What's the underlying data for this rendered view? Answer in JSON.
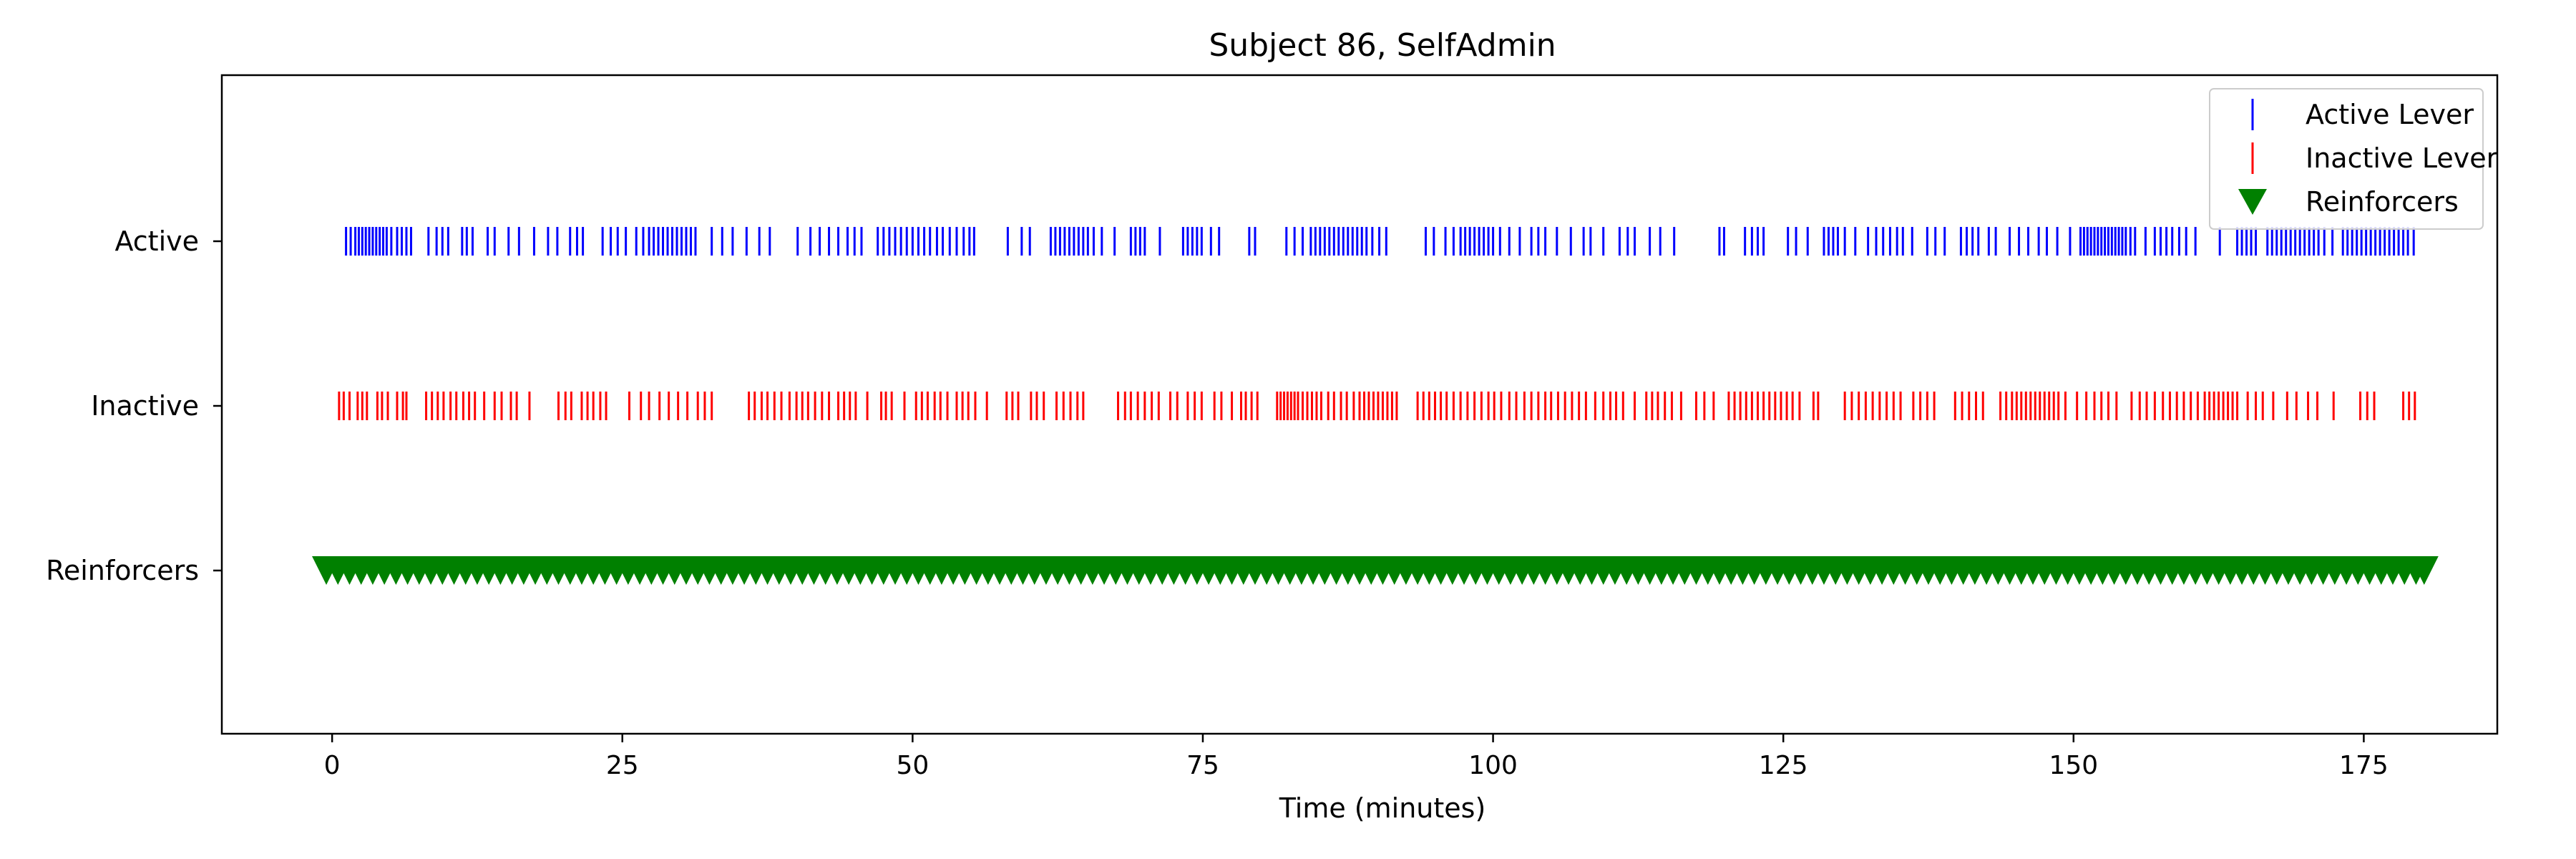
{
  "chart_data": {
    "type": "scatter",
    "title": "Subject 86, SelfAdmin",
    "xlabel": "Time (minutes)",
    "ylabel": "",
    "xlim": [
      -9.5,
      186.5
    ],
    "xticks": [
      0,
      25,
      50,
      75,
      100,
      125,
      150,
      175
    ],
    "xtick_labels": [
      "0",
      "25",
      "50",
      "75",
      "100",
      "125",
      "150",
      "175"
    ],
    "y_categories": [
      "Active",
      "Inactive",
      "Reinforcers"
    ],
    "grid": false,
    "legend_position": "top-right",
    "series": [
      {
        "name": "Active Lever",
        "row": "Active",
        "marker": "vertical-line",
        "color": "#0000ff",
        "x": [
          1.2,
          1.6,
          2.0,
          2.3,
          2.6,
          2.9,
          3.2,
          3.5,
          3.8,
          4.1,
          4.4,
          4.7,
          5.1,
          5.6,
          6.0,
          6.4,
          6.8,
          8.3,
          9.0,
          9.5,
          10.0,
          11.2,
          11.6,
          12.1,
          13.4,
          14.0,
          15.2,
          16.1,
          17.4,
          18.6,
          19.4,
          20.5,
          21.1,
          21.6,
          23.3,
          24.0,
          24.6,
          25.3,
          26.2,
          26.8,
          27.3,
          27.7,
          28.1,
          28.5,
          28.9,
          29.3,
          29.7,
          30.1,
          30.5,
          30.9,
          31.3,
          32.7,
          33.6,
          34.5,
          35.7,
          36.8,
          37.7,
          40.1,
          41.2,
          42.0,
          42.8,
          43.6,
          44.4,
          45.0,
          45.6,
          47.0,
          47.5,
          48.0,
          48.5,
          49.0,
          49.5,
          50.0,
          50.5,
          51.0,
          51.5,
          52.1,
          52.6,
          53.2,
          53.8,
          54.4,
          54.9,
          55.3,
          58.2,
          59.4,
          60.1,
          61.9,
          62.3,
          62.7,
          63.1,
          63.5,
          63.9,
          64.3,
          64.7,
          65.1,
          65.6,
          66.3,
          67.4,
          68.8,
          69.2,
          69.6,
          70.0,
          71.3,
          73.3,
          73.7,
          74.1,
          74.5,
          74.9,
          75.7,
          76.4,
          79.0,
          79.5,
          82.2,
          82.9,
          83.6,
          84.3,
          84.7,
          85.1,
          85.5,
          85.9,
          86.3,
          86.7,
          87.1,
          87.5,
          87.9,
          88.3,
          88.7,
          89.1,
          89.6,
          90.2,
          90.8,
          94.2,
          94.9,
          95.9,
          96.6,
          97.2,
          97.6,
          98.0,
          98.4,
          98.8,
          99.2,
          99.6,
          100.0,
          100.6,
          101.4,
          102.3,
          103.3,
          103.9,
          104.5,
          105.5,
          106.7,
          107.8,
          108.4,
          109.5,
          110.9,
          111.6,
          112.2,
          113.5,
          114.4,
          115.6,
          119.5,
          119.9,
          121.7,
          122.3,
          122.8,
          123.3,
          125.4,
          126.1,
          127.1,
          128.5,
          128.9,
          129.3,
          129.7,
          130.3,
          131.2,
          132.3,
          133.0,
          133.6,
          134.2,
          134.8,
          135.3,
          136.1,
          137.4,
          138.1,
          138.9,
          140.3,
          140.8,
          141.3,
          141.8,
          142.7,
          143.3,
          144.5,
          145.3,
          146.1,
          147.0,
          147.7,
          148.6,
          149.7,
          150.6,
          150.9,
          151.2,
          151.5,
          151.8,
          152.1,
          152.4,
          152.7,
          153.0,
          153.3,
          153.6,
          153.9,
          154.2,
          154.5,
          154.9,
          155.3,
          156.2,
          157.0,
          157.5,
          158.0,
          158.5,
          159.1,
          159.7,
          160.5,
          162.6,
          164.1,
          164.5,
          164.9,
          165.3,
          165.7,
          166.7,
          167.1,
          167.5,
          167.9,
          168.3,
          168.7,
          169.1,
          169.5,
          169.9,
          170.3,
          170.7,
          171.1,
          171.6,
          172.3,
          173.2,
          173.6,
          174.0,
          174.4,
          174.8,
          175.2,
          175.6,
          176.0,
          176.4,
          176.8,
          177.2,
          177.6,
          178.0,
          178.4,
          178.8,
          179.3
        ]
      },
      {
        "name": "Inactive Lever",
        "row": "Inactive",
        "marker": "vertical-line",
        "color": "#ff0000",
        "x": [
          0.6,
          1.0,
          1.5,
          2.2,
          2.6,
          3.0,
          3.9,
          4.3,
          4.8,
          5.6,
          6.1,
          6.4,
          8.1,
          8.6,
          9.1,
          9.6,
          10.2,
          10.7,
          11.3,
          11.8,
          12.3,
          13.1,
          14.0,
          14.6,
          15.4,
          15.9,
          17.0,
          19.5,
          20.1,
          20.6,
          21.5,
          22.0,
          22.5,
          23.1,
          23.6,
          25.6,
          26.6,
          27.3,
          28.2,
          29.0,
          29.8,
          30.6,
          31.5,
          32.1,
          32.7,
          35.9,
          36.4,
          37.0,
          37.5,
          38.1,
          38.7,
          39.4,
          40.0,
          40.5,
          41.0,
          41.6,
          42.2,
          42.8,
          43.6,
          44.1,
          44.6,
          45.1,
          46.1,
          47.3,
          47.7,
          48.2,
          49.3,
          50.3,
          50.8,
          51.3,
          51.9,
          52.4,
          53.0,
          53.8,
          54.3,
          54.8,
          55.4,
          56.4,
          58.1,
          58.6,
          59.1,
          60.2,
          60.7,
          61.3,
          62.4,
          63.0,
          63.6,
          64.2,
          64.7,
          67.7,
          68.3,
          68.8,
          69.4,
          70.0,
          70.6,
          71.2,
          72.2,
          72.8,
          73.7,
          74.3,
          74.9,
          76.0,
          76.6,
          77.5,
          78.3,
          78.7,
          79.2,
          79.7,
          81.4,
          81.7,
          82.0,
          82.3,
          82.6,
          82.9,
          83.2,
          83.6,
          84.0,
          84.4,
          84.8,
          85.2,
          85.8,
          86.3,
          86.9,
          87.4,
          88.0,
          88.5,
          88.9,
          89.3,
          89.7,
          90.1,
          90.5,
          90.9,
          91.3,
          91.7,
          93.5,
          94.0,
          94.5,
          95.0,
          95.5,
          96.0,
          96.6,
          97.2,
          97.8,
          98.4,
          99.0,
          99.6,
          100.1,
          100.7,
          101.4,
          102.0,
          102.7,
          103.3,
          103.9,
          104.5,
          105.0,
          105.6,
          106.2,
          106.8,
          107.4,
          108.0,
          108.8,
          109.5,
          110.1,
          110.6,
          111.2,
          112.2,
          113.2,
          113.7,
          114.2,
          114.8,
          115.4,
          116.2,
          117.5,
          118.2,
          119.0,
          120.3,
          120.8,
          121.3,
          121.8,
          122.3,
          122.8,
          123.3,
          123.8,
          124.3,
          124.8,
          125.3,
          125.8,
          126.4,
          127.6,
          128.0,
          130.3,
          130.9,
          131.5,
          132.1,
          132.7,
          133.3,
          133.9,
          134.5,
          135.1,
          136.2,
          136.8,
          137.4,
          138.0,
          139.8,
          140.4,
          141.0,
          141.6,
          142.2,
          143.7,
          144.2,
          144.7,
          145.1,
          145.5,
          145.9,
          146.3,
          146.7,
          147.1,
          147.5,
          147.9,
          148.3,
          148.7,
          149.3,
          150.3,
          151.1,
          151.8,
          152.4,
          153.0,
          153.7,
          155.0,
          155.7,
          156.3,
          157.0,
          157.7,
          158.3,
          158.9,
          159.5,
          160.1,
          160.7,
          161.3,
          161.7,
          162.1,
          162.5,
          162.9,
          163.3,
          163.7,
          164.1,
          165.0,
          165.7,
          166.3,
          167.2,
          168.4,
          169.2,
          170.2,
          171.0,
          172.4,
          174.7,
          175.3,
          175.9,
          178.4,
          178.9,
          179.4
        ]
      },
      {
        "name": "Reinforcers",
        "row": "Reinforcers",
        "marker": "triangle-down",
        "color": "#008000",
        "x": [
          -0.5,
          0.5,
          1.5,
          2.5,
          3.5,
          4.5,
          5.5,
          6.5,
          7.5,
          8.5,
          9.5,
          10.5,
          11.5,
          12.5,
          13.5,
          14.5,
          15.5,
          16.5,
          17.5,
          18.5,
          19.5,
          20.5,
          21.5,
          22.5,
          23.5,
          24.5,
          25.5,
          26.5,
          27.5,
          28.5,
          29.5,
          30.5,
          31.5,
          32.5,
          33.5,
          34.5,
          35.5,
          36.5,
          37.5,
          38.5,
          39.5,
          40.5,
          41.5,
          42.5,
          43.5,
          44.5,
          45.5,
          46.5,
          47.5,
          48.5,
          49.5,
          50.5,
          51.5,
          52.5,
          53.5,
          54.5,
          55.5,
          56.5,
          57.5,
          58.5,
          59.5,
          60.5,
          61.5,
          62.5,
          63.5,
          64.5,
          65.5,
          66.5,
          67.5,
          68.5,
          69.5,
          70.5,
          71.5,
          72.5,
          73.5,
          74.5,
          75.5,
          76.5,
          77.5,
          78.5,
          79.5,
          80.5,
          81.5,
          82.5,
          83.5,
          84.5,
          85.5,
          86.5,
          87.5,
          88.5,
          89.5,
          90.5,
          91.5,
          92.5,
          93.5,
          94.5,
          95.5,
          96.5,
          97.5,
          98.5,
          99.5,
          100.5,
          101.5,
          102.5,
          103.5,
          104.5,
          105.5,
          106.5,
          107.5,
          108.5,
          109.5,
          110.5,
          111.5,
          112.5,
          113.5,
          114.5,
          115.5,
          116.5,
          117.5,
          118.5,
          119.5,
          120.5,
          121.5,
          122.5,
          123.5,
          124.5,
          125.5,
          126.5,
          127.5,
          128.5,
          129.5,
          130.5,
          131.5,
          132.5,
          133.5,
          134.5,
          135.5,
          136.5,
          137.5,
          138.5,
          139.5,
          140.5,
          141.5,
          142.5,
          143.5,
          144.5,
          145.5,
          146.5,
          147.5,
          148.5,
          149.5,
          150.5,
          151.5,
          152.5,
          153.5,
          154.5,
          155.5,
          156.5,
          157.5,
          158.5,
          159.5,
          160.5,
          161.5,
          162.5,
          163.5,
          164.5,
          165.5,
          166.5,
          167.5,
          168.5,
          169.5,
          170.5,
          171.5,
          172.5,
          173.5,
          174.5,
          175.5,
          176.5,
          177.5,
          178.5,
          179.5,
          180.2
        ]
      }
    ]
  }
}
